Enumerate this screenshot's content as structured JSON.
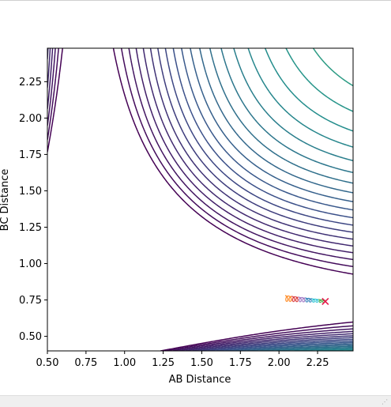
{
  "chart_data": {
    "type": "contour",
    "xlabel": "AB Distance",
    "ylabel": "BC Distance",
    "xlim": [
      0.5,
      2.48
    ],
    "ylim": [
      0.4,
      2.48
    ],
    "xticks": [
      "0.50",
      "0.75",
      "1.00",
      "1.25",
      "1.50",
      "1.75",
      "2.00",
      "2.25"
    ],
    "yticks": [
      "0.50",
      "0.75",
      "1.00",
      "1.25",
      "1.50",
      "1.75",
      "2.00",
      "2.25"
    ],
    "colormap": [
      "#440154",
      "#3b528b",
      "#21918c",
      "#5ec962",
      "#fde725"
    ],
    "trajectory": {
      "start": {
        "x": 2.04,
        "y": 0.76
      },
      "end": {
        "x": 2.3,
        "y": 0.74
      },
      "marker": "x",
      "marker_color": "#e6194b"
    }
  },
  "window": {
    "grip_icon": "resize-grip-icon"
  }
}
